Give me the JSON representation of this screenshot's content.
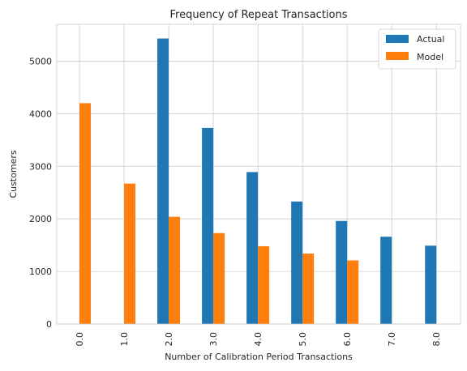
{
  "chart_data": {
    "type": "bar",
    "title": "Frequency of Repeat Transactions",
    "xlabel": "Number of Calibration Period Transactions",
    "ylabel": "Customers",
    "categories": [
      "0.0",
      "1.0",
      "2.0",
      "3.0",
      "4.0",
      "5.0",
      "6.0",
      "7.0",
      "8.0"
    ],
    "series": [
      {
        "name": "Actual",
        "color": "#1f77b4",
        "values": [
          0,
          0,
          5430,
          3730,
          2890,
          2330,
          1960,
          1660,
          1490
        ]
      },
      {
        "name": "Model",
        "color": "#ff7f0e",
        "values": [
          4200,
          2670,
          2040,
          1730,
          1480,
          1340,
          1210,
          0,
          0
        ]
      }
    ],
    "ylim": [
      0,
      5700
    ],
    "yticks": [
      0,
      1000,
      2000,
      3000,
      4000,
      5000
    ],
    "grid": true,
    "legend_position": "top-right"
  }
}
